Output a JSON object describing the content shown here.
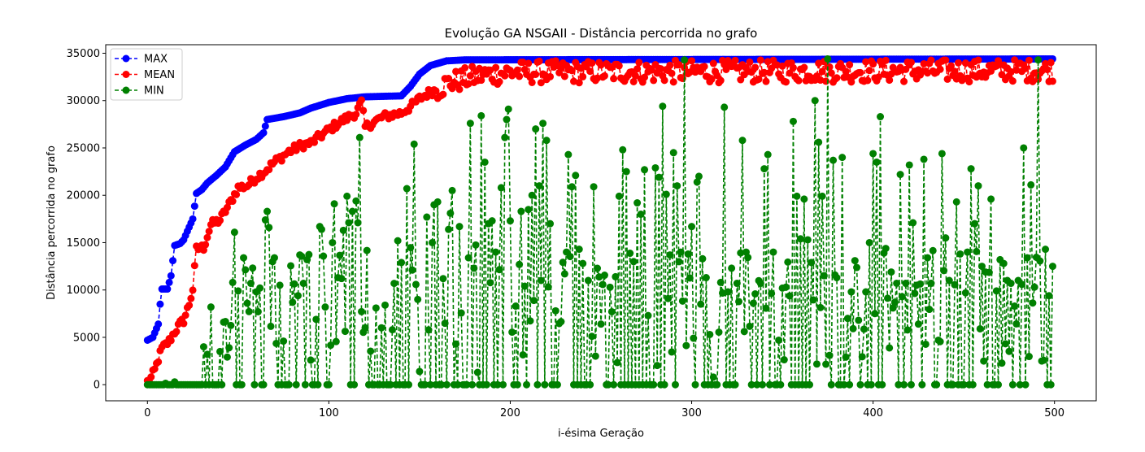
{
  "chart_data": {
    "type": "line",
    "title": "Evolução GA NSGAII - Distância percorrida no grafo",
    "xlabel": "i-ésima Geração",
    "ylabel": "Distância percorrida no grafo",
    "xlim": [
      -23,
      523
    ],
    "ylim": [
      -1700,
      35900
    ],
    "xticks": [
      0,
      100,
      200,
      300,
      400,
      500
    ],
    "yticks": [
      0,
      5000,
      10000,
      15000,
      20000,
      25000,
      30000,
      35000
    ],
    "legend_position": "top-left",
    "series": [
      {
        "name": "MAX",
        "color": "#0000ff",
        "style": "dashed-marker",
        "keypoints": [
          [
            0,
            4700
          ],
          [
            3,
            5000
          ],
          [
            6,
            6400
          ],
          [
            7,
            8500
          ],
          [
            8,
            10100
          ],
          [
            11,
            10100
          ],
          [
            13,
            11500
          ],
          [
            15,
            14700
          ],
          [
            18,
            14900
          ],
          [
            20,
            15300
          ],
          [
            22,
            16200
          ],
          [
            25,
            17500
          ],
          [
            27,
            20200
          ],
          [
            30,
            20600
          ],
          [
            33,
            21300
          ],
          [
            38,
            22100
          ],
          [
            43,
            23000
          ],
          [
            48,
            24600
          ],
          [
            54,
            25300
          ],
          [
            60,
            25900
          ],
          [
            64,
            26600
          ],
          [
            66,
            28000
          ],
          [
            75,
            28300
          ],
          [
            84,
            28700
          ],
          [
            90,
            29200
          ],
          [
            100,
            29800
          ],
          [
            110,
            30200
          ],
          [
            120,
            30400
          ],
          [
            140,
            30500
          ],
          [
            145,
            31500
          ],
          [
            150,
            32800
          ],
          [
            156,
            33700
          ],
          [
            165,
            34200
          ],
          [
            175,
            34300
          ],
          [
            500,
            34400
          ]
        ]
      },
      {
        "name": "MEAN",
        "color": "#ff0000",
        "style": "dashed-marker",
        "keypoints": [
          [
            0,
            300
          ],
          [
            2,
            700
          ],
          [
            4,
            1500
          ],
          [
            6,
            2700
          ],
          [
            8,
            3800
          ],
          [
            12,
            4600
          ],
          [
            15,
            5600
          ],
          [
            18,
            6400
          ],
          [
            20,
            6800
          ],
          [
            23,
            8500
          ],
          [
            25,
            10100
          ],
          [
            27,
            14300
          ],
          [
            31,
            14500
          ],
          [
            35,
            16900
          ],
          [
            40,
            17400
          ],
          [
            45,
            19000
          ],
          [
            50,
            20800
          ],
          [
            55,
            21000
          ],
          [
            60,
            21900
          ],
          [
            65,
            22600
          ],
          [
            70,
            23500
          ],
          [
            78,
            24600
          ],
          [
            85,
            25300
          ],
          [
            90,
            25500
          ],
          [
            95,
            26200
          ],
          [
            105,
            27600
          ],
          [
            115,
            28700
          ],
          [
            118,
            29800
          ],
          [
            120,
            27200
          ],
          [
            130,
            28300
          ],
          [
            140,
            28700
          ],
          [
            146,
            29500
          ],
          [
            150,
            30200
          ],
          [
            155,
            30800
          ],
          [
            160,
            31200
          ],
          [
            165,
            31800
          ],
          [
            175,
            32300
          ],
          [
            185,
            32700
          ],
          [
            200,
            33000
          ],
          [
            500,
            33200
          ]
        ],
        "noise_after": 160,
        "noise_amp": 1500
      },
      {
        "name": "MIN",
        "color": "#008000",
        "style": "dashed-marker",
        "spikes": [
          [
            10,
            150
          ],
          [
            15,
            300
          ],
          [
            31,
            4000
          ],
          [
            33,
            3200
          ],
          [
            35,
            8200
          ],
          [
            40,
            3500
          ],
          [
            42,
            6600
          ],
          [
            45,
            3900
          ],
          [
            47,
            10800
          ],
          [
            48,
            16100
          ],
          [
            50,
            9900
          ],
          [
            55,
            8600
          ],
          [
            57,
            10700
          ],
          [
            61,
            7700
          ],
          [
            65,
            17400
          ],
          [
            66,
            18300
          ],
          [
            67,
            16600
          ],
          [
            70,
            13400
          ],
          [
            73,
            10500
          ],
          [
            75,
            4600
          ],
          [
            80,
            8700
          ],
          [
            84,
            13700
          ],
          [
            86,
            10700
          ],
          [
            90,
            2600
          ],
          [
            93,
            6900
          ],
          [
            95,
            16700
          ],
          [
            96,
            16400
          ],
          [
            98,
            8200
          ],
          [
            102,
            15000
          ],
          [
            103,
            19100
          ],
          [
            105,
            11300
          ],
          [
            108,
            16300
          ],
          [
            110,
            19900
          ],
          [
            111,
            17100
          ],
          [
            113,
            18300
          ],
          [
            115,
            19400
          ],
          [
            116,
            17100
          ],
          [
            117,
            26100
          ],
          [
            120,
            6000
          ],
          [
            126,
            8100
          ],
          [
            131,
            8400
          ],
          [
            135,
            5800
          ],
          [
            138,
            15200
          ],
          [
            140,
            12900
          ],
          [
            143,
            20700
          ],
          [
            146,
            12100
          ],
          [
            147,
            25400
          ],
          [
            149,
            9000
          ],
          [
            150,
            1400
          ],
          [
            154,
            17700
          ],
          [
            157,
            15000
          ],
          [
            158,
            19000
          ],
          [
            160,
            19300
          ],
          [
            163,
            11200
          ],
          [
            166,
            16400
          ],
          [
            167,
            18100
          ],
          [
            168,
            20500
          ],
          [
            170,
            4300
          ],
          [
            172,
            16700
          ],
          [
            177,
            13400
          ],
          [
            178,
            27600
          ],
          [
            180,
            12300
          ],
          [
            182,
            1300
          ],
          [
            184,
            28400
          ],
          [
            186,
            23500
          ],
          [
            188,
            17000
          ],
          [
            190,
            17300
          ],
          [
            192,
            14000
          ],
          [
            195,
            20800
          ],
          [
            197,
            26100
          ],
          [
            198,
            28000
          ],
          [
            199,
            29100
          ],
          [
            200,
            17300
          ],
          [
            203,
            8300
          ],
          [
            205,
            12700
          ],
          [
            206,
            18300
          ],
          [
            208,
            10400
          ],
          [
            210,
            18500
          ],
          [
            212,
            20000
          ],
          [
            214,
            27000
          ],
          [
            216,
            21000
          ],
          [
            218,
            27600
          ],
          [
            220,
            25800
          ],
          [
            222,
            17000
          ],
          [
            225,
            7800
          ],
          [
            230,
            11700
          ],
          [
            232,
            24300
          ],
          [
            234,
            20900
          ],
          [
            236,
            22100
          ],
          [
            238,
            14300
          ],
          [
            240,
            12800
          ],
          [
            243,
            11000
          ],
          [
            246,
            20900
          ],
          [
            250,
            6400
          ],
          [
            256,
            7700
          ],
          [
            258,
            11400
          ],
          [
            260,
            19900
          ],
          [
            262,
            24800
          ],
          [
            264,
            22500
          ],
          [
            268,
            13000
          ],
          [
            270,
            19200
          ],
          [
            272,
            18000
          ],
          [
            274,
            22700
          ],
          [
            276,
            7300
          ],
          [
            280,
            22900
          ],
          [
            282,
            21900
          ],
          [
            284,
            29400
          ],
          [
            286,
            20100
          ],
          [
            288,
            13700
          ],
          [
            290,
            24500
          ],
          [
            292,
            21000
          ],
          [
            294,
            14000
          ],
          [
            296,
            34300
          ],
          [
            298,
            13800
          ],
          [
            300,
            16700
          ],
          [
            303,
            21400
          ],
          [
            304,
            22000
          ],
          [
            306,
            13300
          ],
          [
            308,
            11300
          ],
          [
            312,
            800
          ],
          [
            316,
            10800
          ],
          [
            318,
            29300
          ],
          [
            322,
            12300
          ],
          [
            325,
            10700
          ],
          [
            328,
            25800
          ],
          [
            330,
            14000
          ],
          [
            334,
            8600
          ],
          [
            338,
            10700
          ],
          [
            340,
            22800
          ],
          [
            342,
            24300
          ],
          [
            345,
            14000
          ],
          [
            348,
            4700
          ],
          [
            350,
            10200
          ],
          [
            352,
            10300
          ],
          [
            356,
            27800
          ],
          [
            358,
            19900
          ],
          [
            360,
            15400
          ],
          [
            362,
            19600
          ],
          [
            364,
            15300
          ],
          [
            366,
            12900
          ],
          [
            368,
            30000
          ],
          [
            370,
            25600
          ],
          [
            372,
            19900
          ],
          [
            375,
            34400
          ],
          [
            378,
            23700
          ],
          [
            380,
            11300
          ],
          [
            383,
            24000
          ],
          [
            386,
            7000
          ],
          [
            388,
            9800
          ],
          [
            390,
            13100
          ],
          [
            392,
            6800
          ],
          [
            396,
            9800
          ],
          [
            398,
            15000
          ],
          [
            400,
            24400
          ],
          [
            402,
            23500
          ],
          [
            404,
            28300
          ],
          [
            406,
            13900
          ],
          [
            410,
            11900
          ],
          [
            412,
            8700
          ],
          [
            415,
            22200
          ],
          [
            418,
            10700
          ],
          [
            420,
            23200
          ],
          [
            422,
            17100
          ],
          [
            425,
            6400
          ],
          [
            428,
            23800
          ],
          [
            430,
            13400
          ],
          [
            432,
            10700
          ],
          [
            436,
            4700
          ],
          [
            438,
            24400
          ],
          [
            440,
            15500
          ],
          [
            442,
            11000
          ],
          [
            446,
            19300
          ],
          [
            448,
            13800
          ],
          [
            452,
            14000
          ],
          [
            454,
            22800
          ],
          [
            456,
            17000
          ],
          [
            458,
            21000
          ],
          [
            460,
            12500
          ],
          [
            462,
            11900
          ],
          [
            465,
            19600
          ],
          [
            468,
            9900
          ],
          [
            470,
            13200
          ],
          [
            472,
            12800
          ],
          [
            474,
            11000
          ],
          [
            476,
            10700
          ],
          [
            478,
            8300
          ],
          [
            480,
            11000
          ],
          [
            483,
            25000
          ],
          [
            485,
            13400
          ],
          [
            487,
            21100
          ],
          [
            489,
            10300
          ],
          [
            491,
            34300
          ],
          [
            493,
            2500
          ],
          [
            495,
            14300
          ],
          [
            497,
            9400
          ],
          [
            499,
            12500
          ]
        ]
      }
    ]
  }
}
